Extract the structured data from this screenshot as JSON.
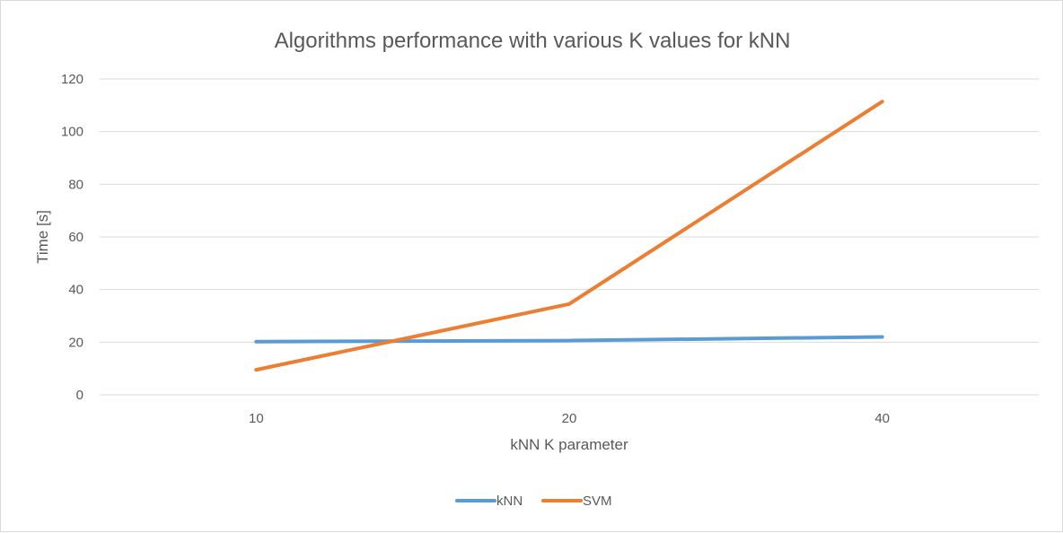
{
  "chart_data": {
    "type": "line",
    "title": "Algorithms performance  with various K values  for kNN",
    "xlabel": "kNN K parameter",
    "ylabel": "Time [s]",
    "categories": [
      "10",
      "20",
      "40"
    ],
    "ylim": [
      0,
      120
    ],
    "yticks": [
      "0",
      "20",
      "40",
      "60",
      "80",
      "100",
      "120"
    ],
    "grid": true,
    "legend_position": "bottom",
    "series": [
      {
        "name": "kNN",
        "color": "#5b9bd5",
        "values": [
          20.2,
          20.6,
          22.0
        ]
      },
      {
        "name": "SVM",
        "color": "#ed7d31",
        "values": [
          9.5,
          34.5,
          111.4
        ]
      }
    ]
  }
}
